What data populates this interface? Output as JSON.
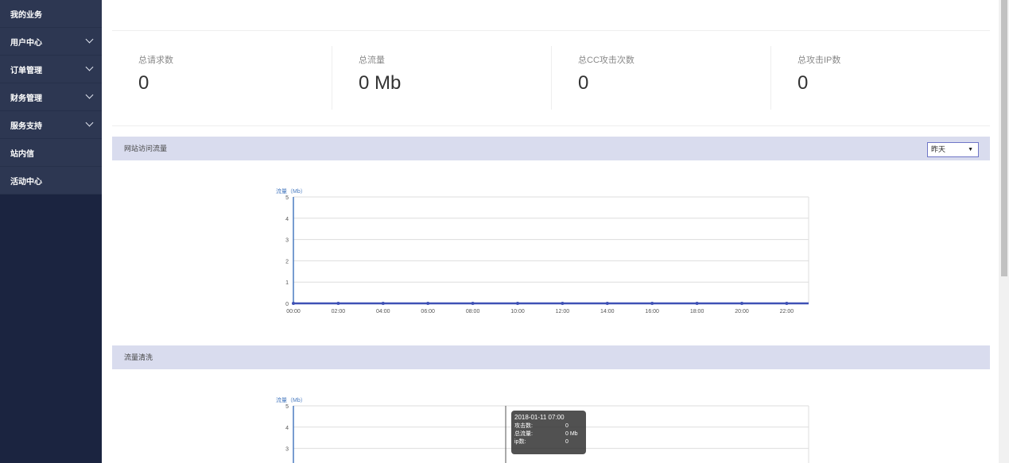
{
  "sidebar": {
    "items": [
      {
        "label": "我的业务",
        "expandable": false
      },
      {
        "label": "用户中心",
        "expandable": true
      },
      {
        "label": "订单管理",
        "expandable": true
      },
      {
        "label": "财务管理",
        "expandable": true
      },
      {
        "label": "服务支持",
        "expandable": true
      },
      {
        "label": "站内信",
        "expandable": false
      },
      {
        "label": "活动中心",
        "expandable": false
      }
    ]
  },
  "stats": [
    {
      "label": "总请求数",
      "value": "0"
    },
    {
      "label": "总流量",
      "value": "0 Mb"
    },
    {
      "label": "总CC攻击次数",
      "value": "0"
    },
    {
      "label": "总攻击IP数",
      "value": "0"
    }
  ],
  "sections": {
    "traffic_title": "网站访问流量",
    "traffic_range": "昨天",
    "cleaning_title": "流量清洗"
  },
  "tooltip": {
    "time": "2018-01-11 07:00",
    "rows": [
      {
        "k": "攻击数:",
        "v": "0"
      },
      {
        "k": "总流量:",
        "v": "0 Mb"
      },
      {
        "k": "ip数:",
        "v": "0"
      }
    ]
  },
  "colors": {
    "line": "#3f51b5",
    "axis": "#4a7bc0",
    "sidebar": "#1b2440"
  },
  "chart_data": [
    {
      "type": "line",
      "ylabel": "流量（Mb）",
      "ylim": [
        0,
        5
      ],
      "yticks": [
        "0",
        "1",
        "2",
        "3",
        "4",
        "5"
      ],
      "categories": [
        "00:00",
        "02:00",
        "04:00",
        "06:00",
        "08:00",
        "10:00",
        "12:00",
        "14:00",
        "16:00",
        "18:00",
        "20:00",
        "22:00"
      ],
      "values": [
        0,
        0,
        0,
        0,
        0,
        0,
        0,
        0,
        0,
        0,
        0,
        0
      ],
      "grid": true
    },
    {
      "type": "line",
      "ylabel": "流量（Mb）",
      "ylim": [
        0,
        5
      ],
      "yticks": [
        "3",
        "4",
        "5"
      ],
      "grid": true
    }
  ]
}
